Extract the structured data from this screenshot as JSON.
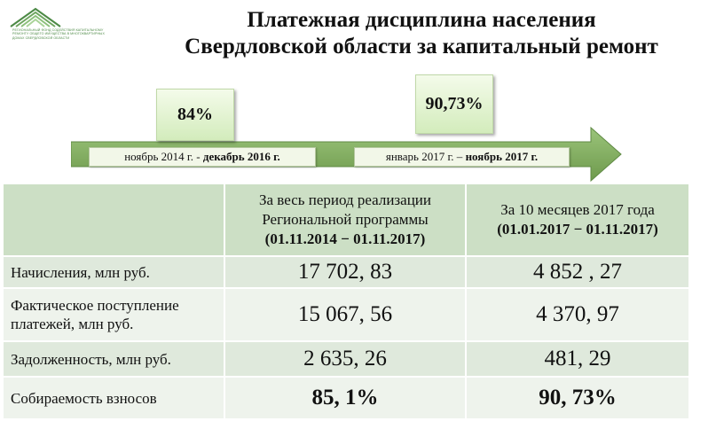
{
  "logo": {
    "text_line1": "РЕГИОНАЛЬНЫЙ ФОНД СОДЕЙСТВИЯ КАПИТАЛЬНОМУ",
    "text_line2": "РЕМОНТУ ОБЩЕГО ИМУЩЕСТВА В МНОГОКВАРТИРНЫХ",
    "text_line3": "ДОМАХ СВЕРДЛОВСКОЙ ОБЛАСТИ"
  },
  "title": {
    "line1": "Платежная дисциплина населения",
    "line2": "Свердловской области за капитальный ремонт"
  },
  "timeline": {
    "arrow_color": "#7fa95c",
    "marker1": {
      "value": "84%"
    },
    "marker2": {
      "value": "90,73%"
    },
    "period1": {
      "start": "ноябрь 2014 г. - ",
      "end": "декабрь 2016 г."
    },
    "period2": {
      "start": "январь 2017 г. – ",
      "end": "ноябрь 2017 г."
    }
  },
  "table": {
    "header": {
      "col1": {
        "line1": "За весь период реализации",
        "line2": "Региональной программы",
        "line3": "(01.11.2014 − 01.11.2017)"
      },
      "col2": {
        "line1": "За 10 месяцев 2017 года",
        "line2": "(01.01.2017 − 01.11.2017)"
      }
    },
    "rows": [
      {
        "label": "Начисления, млн  руб.",
        "v1": "17 702, 83",
        "v2": "4 852 , 27"
      },
      {
        "label_line1": "Фактическое поступление",
        "label_line2": "платежей, млн руб.",
        "v1": "15 067, 56",
        "v2": "4 370, 97"
      },
      {
        "label": "Задолженность, млн руб.",
        "v1": "2 635, 26",
        "v2": "481, 29"
      },
      {
        "label": "Собираемость взносов",
        "v1": "85, 1%",
        "v2": "90, 73%"
      }
    ],
    "colors": {
      "header": "#ccdfc5",
      "band_dark": "#dfe9dc",
      "band_light": "#eef3ec"
    }
  }
}
